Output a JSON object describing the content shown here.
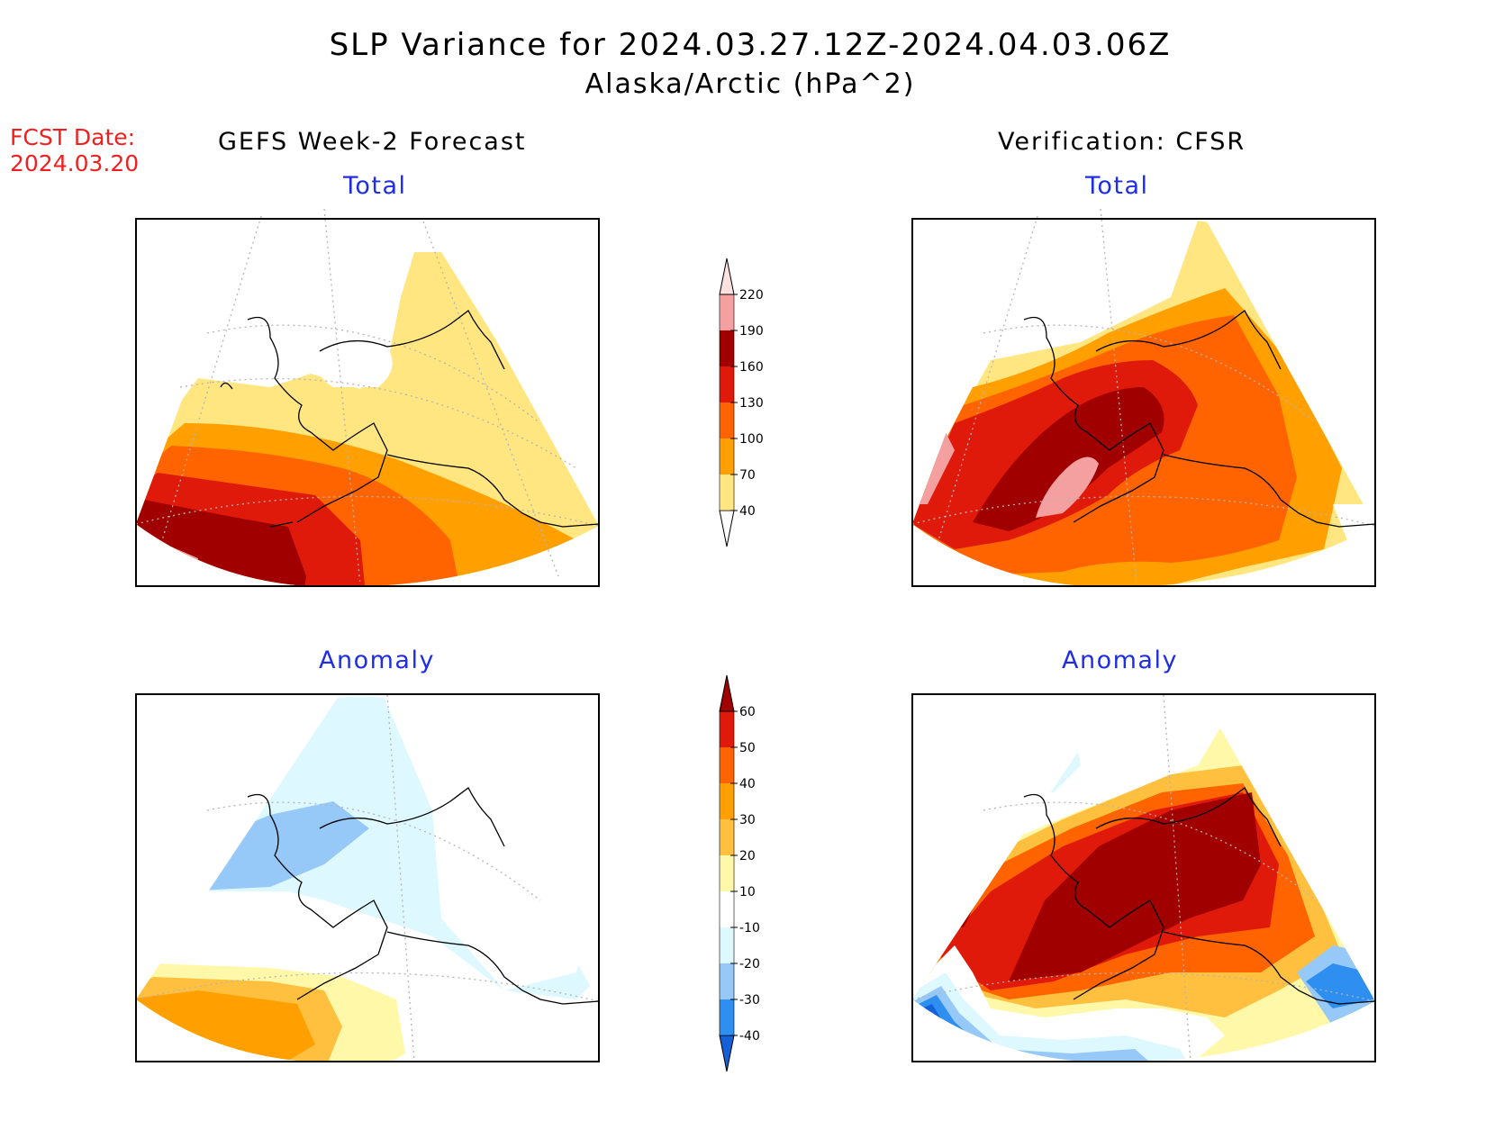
{
  "title": "SLP Variance for 2024.03.27.12Z-2024.04.03.06Z",
  "subtitle": "Alaska/Arctic (hPa^2)",
  "forecast_date_label": "FCST Date:",
  "forecast_date": "2024.03.20",
  "left_column": {
    "heading": "GEFS Week-2 Forecast",
    "top_title": "Total",
    "bottom_title": "Anomaly"
  },
  "right_column": {
    "heading": "Verification: CFSR",
    "top_title": "Total",
    "bottom_title": "Anomaly"
  },
  "total_colorbar": {
    "levels": [
      "40",
      "70",
      "100",
      "130",
      "160",
      "190",
      "220"
    ],
    "colors": [
      "#ffe680",
      "#ffa000",
      "#ff6400",
      "#e01a0a",
      "#a00000",
      "#f4a0a0",
      "#fde0e0"
    ]
  },
  "anomaly_colorbar": {
    "levels": [
      "-40",
      "-30",
      "-20",
      "-10",
      "10",
      "20",
      "30",
      "40",
      "50",
      "60"
    ],
    "colors": [
      "#1460d8",
      "#2f8ff0",
      "#96c8f8",
      "#def8ff",
      "#ffffff",
      "#fff8a8",
      "#ffc040",
      "#ffa000",
      "#ff6400",
      "#e01a0a",
      "#a00000"
    ]
  }
}
